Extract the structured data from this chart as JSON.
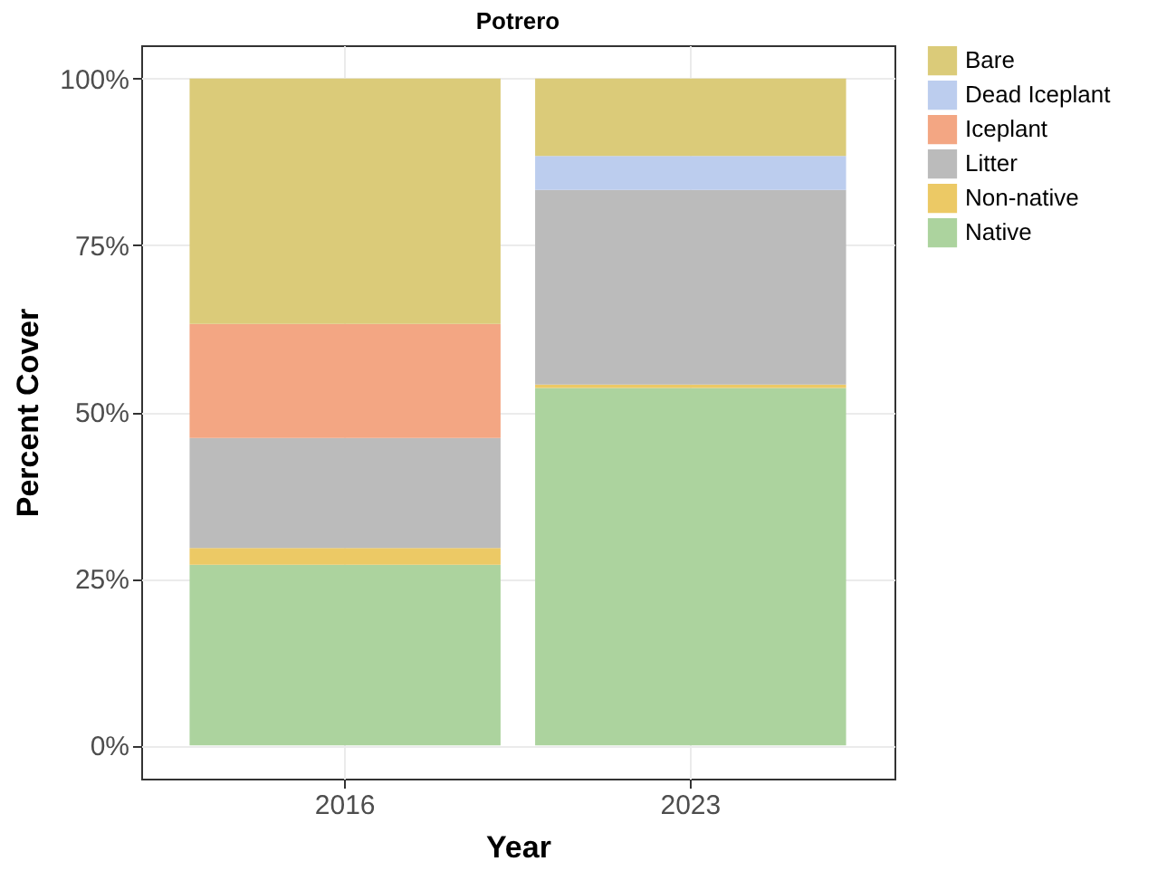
{
  "chart_data": {
    "type": "bar",
    "title": "Potrero",
    "xlabel": "Year",
    "ylabel": "Percent Cover",
    "stacked": true,
    "grid": true,
    "legend": "right",
    "categories": [
      "2016",
      "2023"
    ],
    "series": [
      {
        "name": "Native",
        "color": "#acd39e",
        "values": [
          27.1,
          53.6
        ]
      },
      {
        "name": "Non-native",
        "color": "#ecc965",
        "values": [
          2.5,
          0.5
        ]
      },
      {
        "name": "Litter",
        "color": "#bbbbbb",
        "values": [
          16.5,
          29.2
        ]
      },
      {
        "name": "Iceplant",
        "color": "#f3a683",
        "values": [
          17.1,
          null
        ]
      },
      {
        "name": "Dead Iceplant",
        "color": "#bccdee",
        "values": [
          null,
          5.1
        ]
      },
      {
        "name": "Bare",
        "color": "#dbcb79",
        "values": [
          36.8,
          11.6
        ]
      }
    ],
    "ylim": [
      -5,
      105
    ],
    "yticks": [
      {
        "value": 0,
        "label": "0%"
      },
      {
        "value": 25,
        "label": "25%"
      },
      {
        "value": 50,
        "label": "50%"
      },
      {
        "value": 75,
        "label": "75%"
      },
      {
        "value": 100,
        "label": "100%"
      }
    ]
  }
}
